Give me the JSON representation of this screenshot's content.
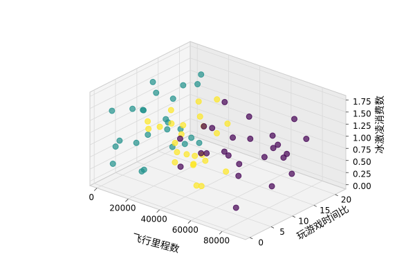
{
  "chart_data": {
    "type": "scatter3d",
    "x_label": "飞行里程数",
    "y_label": "玩游戏时间比",
    "z_label": "冰激凌消费数",
    "xlim": [
      -4500,
      95000
    ],
    "ylim": [
      -1,
      22.5
    ],
    "zlim": [
      -0.09,
      1.84
    ],
    "xticks": [
      0,
      20000,
      40000,
      60000,
      80000
    ],
    "yticks": [
      0,
      5,
      10,
      15,
      20
    ],
    "zticks": [
      {
        "value": 0,
        "label": "0.00"
      },
      {
        "value": 0.25,
        "label": "0.25"
      },
      {
        "value": 0.5,
        "label": "0.50"
      },
      {
        "value": 0.75,
        "label": "0.75"
      },
      {
        "value": 1,
        "label": "1.00"
      },
      {
        "value": 1.25,
        "label": "1.25"
      },
      {
        "value": 1.5,
        "label": "1.50"
      },
      {
        "value": 1.75,
        "label": "1.75"
      }
    ],
    "grid": true,
    "series": [
      {
        "color": "#21918c",
        "x": [
          2000,
          5000,
          8000,
          12000,
          15000,
          3000,
          9000,
          18000,
          6000,
          11000,
          14000,
          1000,
          7000,
          16000,
          4000,
          10000,
          13000,
          19000,
          2500,
          8500,
          17000,
          5500,
          12500,
          900,
          15500
        ],
        "y": [
          2,
          15,
          8,
          19,
          4,
          11,
          1,
          13,
          17,
          6,
          10,
          3,
          20,
          7,
          14,
          12,
          5,
          16,
          9,
          18,
          2,
          0.5,
          14,
          7,
          11
        ],
        "z": [
          0.3,
          1.1,
          0.7,
          1.5,
          0.2,
          1.6,
          0.9,
          0.4,
          1.3,
          0.1,
          1.0,
          0.6,
          1.2,
          1.7,
          0.5,
          0.8,
          1.4,
          0.3,
          1.1,
          0.2,
          0.9,
          1.5,
          0.6,
          1.2,
          0.4
        ]
      },
      {
        "color": "#fde725",
        "x": [
          22000,
          28000,
          35000,
          41000,
          47000,
          25000,
          32000,
          38000,
          44000,
          50000,
          30000,
          36000,
          42000,
          27000,
          33000,
          39000,
          45000,
          24000,
          31000,
          48000,
          37000,
          43000,
          29000,
          34000,
          40000
        ],
        "y": [
          3,
          7,
          10,
          5,
          12,
          14,
          2,
          8,
          11,
          4,
          13,
          6,
          9,
          1,
          15,
          3,
          7,
          10,
          5,
          12,
          8,
          2,
          11,
          4,
          9
        ],
        "z": [
          1.2,
          0.4,
          1.6,
          0.8,
          0.2,
          1.0,
          1.4,
          0.6,
          1.7,
          0.3,
          0.9,
          1.3,
          0.5,
          1.5,
          0.7,
          1.1,
          0.1,
          0.8,
          1.6,
          1.2,
          0.4,
          1.0,
          0.2,
          1.4,
          0.6
        ]
      },
      {
        "color": "#440154",
        "x": [
          35000,
          45000,
          55000,
          65000,
          75000,
          85000,
          40000,
          50000,
          60000,
          70000,
          80000,
          90000,
          38000,
          48000,
          58000,
          68000,
          78000,
          88000,
          42000,
          52000,
          62000,
          72000,
          82000,
          46000,
          66000
        ],
        "y": [
          18,
          2,
          12,
          6,
          16,
          9,
          20,
          14,
          4,
          19,
          11,
          7,
          15,
          1,
          17,
          10,
          3,
          13,
          8,
          5,
          20,
          15,
          18,
          12,
          0.5
        ],
        "z": [
          0.5,
          1.3,
          0.2,
          1.0,
          0.7,
          1.5,
          0.9,
          0.3,
          1.6,
          0.1,
          1.1,
          0.6,
          1.4,
          0.8,
          0.4,
          1.2,
          0.2,
          1.7,
          0.7,
          1.5,
          0.3,
          0.9,
          1.0,
          0.6,
          1.3
        ]
      }
    ]
  }
}
